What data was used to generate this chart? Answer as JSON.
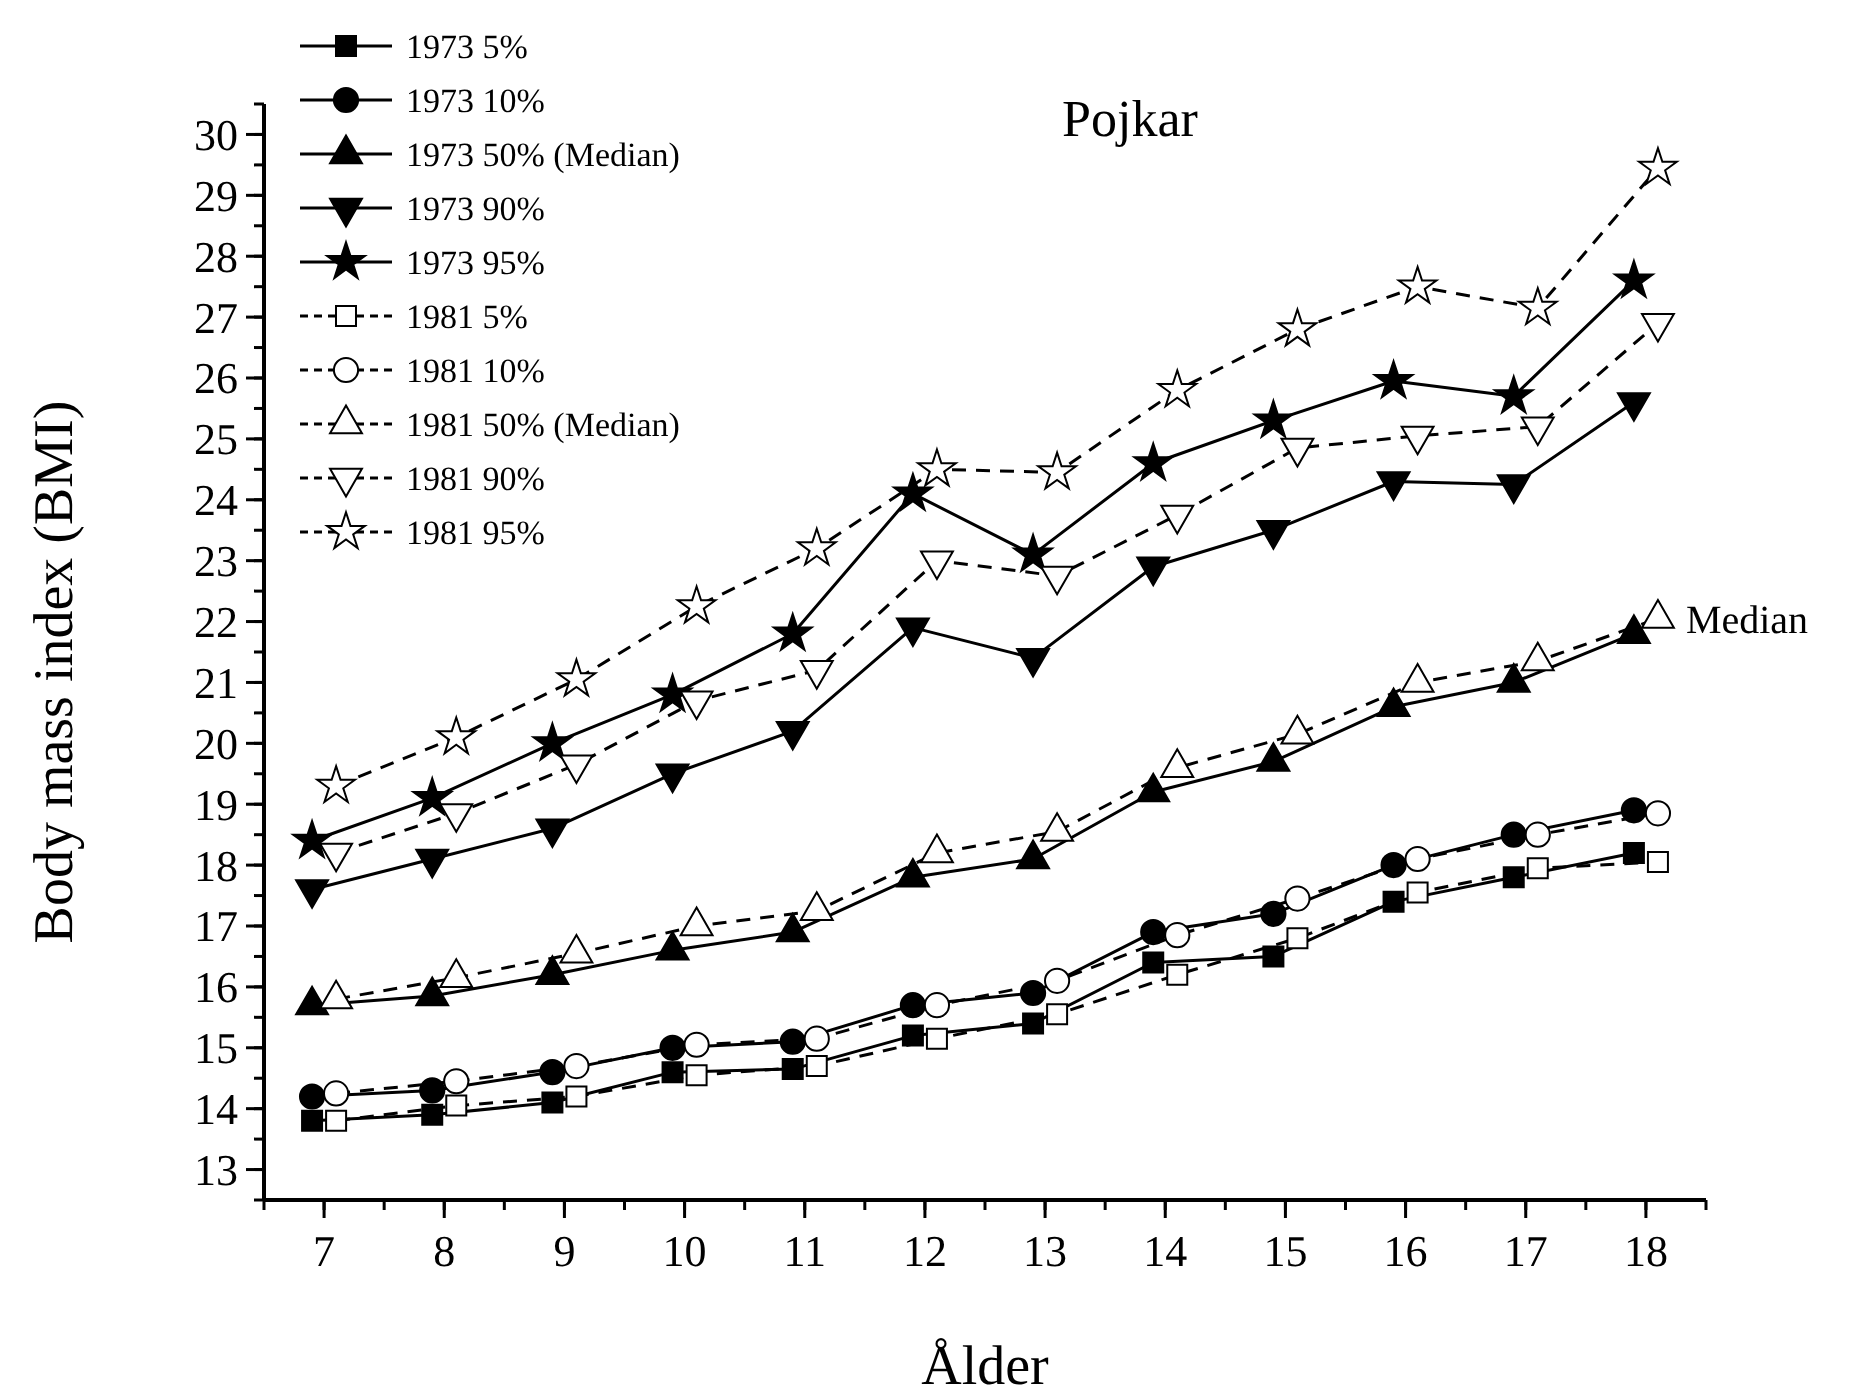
{
  "chart_data": {
    "type": "line",
    "title": "Pojkar",
    "xlabel": "Ålder",
    "ylabel": "Body mass index (BMI)",
    "xlim": [
      6.5,
      18.5
    ],
    "xticks": [
      7,
      8,
      9,
      10,
      11,
      12,
      13,
      14,
      15,
      16,
      17,
      18
    ],
    "ylim": [
      12.5,
      30.5
    ],
    "yticks": [
      13,
      14,
      15,
      16,
      17,
      18,
      19,
      20,
      21,
      22,
      23,
      24,
      25,
      26,
      27,
      28,
      29,
      30
    ],
    "legend": "top left",
    "grid": false,
    "annotations": [
      {
        "text": "Median",
        "x": 18.1,
        "y": 22.05
      }
    ],
    "series": [
      {
        "name": "1973 5%",
        "color": "#000000",
        "marker": "square",
        "line_style": "solid",
        "x": [
          6.9,
          7.9,
          8.9,
          9.9,
          10.9,
          11.9,
          12.9,
          13.9,
          14.9,
          15.9,
          16.9,
          17.9
        ],
        "values": [
          13.8,
          13.9,
          14.1,
          14.6,
          14.65,
          15.2,
          15.4,
          16.4,
          16.5,
          17.4,
          17.8,
          18.2
        ]
      },
      {
        "name": "1973 10%",
        "color": "#000000",
        "marker": "circle",
        "line_style": "solid",
        "x": [
          6.9,
          7.9,
          8.9,
          9.9,
          10.9,
          11.9,
          12.9,
          13.9,
          14.9,
          15.9,
          16.9,
          17.9
        ],
        "values": [
          14.2,
          14.3,
          14.6,
          15.0,
          15.1,
          15.7,
          15.9,
          16.9,
          17.2,
          18.0,
          18.5,
          18.9
        ]
      },
      {
        "name": "1973 50% (Median)",
        "color": "#000000",
        "marker": "triangle",
        "line_style": "solid",
        "x": [
          6.9,
          7.9,
          8.9,
          9.9,
          10.9,
          11.9,
          12.9,
          13.9,
          14.9,
          15.9,
          16.9,
          17.9
        ],
        "values": [
          15.7,
          15.85,
          16.2,
          16.6,
          16.9,
          17.8,
          18.1,
          19.2,
          19.7,
          20.6,
          21.0,
          21.8
        ]
      },
      {
        "name": "1973 90%",
        "color": "#000000",
        "marker": "triangle-down",
        "line_style": "solid",
        "x": [
          6.9,
          7.9,
          8.9,
          9.9,
          10.9,
          11.9,
          12.9,
          13.9,
          14.9,
          15.9,
          16.9,
          17.9
        ],
        "values": [
          17.6,
          18.1,
          18.6,
          19.5,
          20.2,
          21.9,
          21.4,
          22.9,
          23.5,
          24.3,
          24.25,
          25.6
        ]
      },
      {
        "name": "1973 95%",
        "color": "#000000",
        "marker": "star",
        "line_style": "solid",
        "x": [
          6.9,
          7.9,
          8.9,
          9.9,
          10.9,
          11.9,
          12.9,
          13.9,
          14.9,
          15.9,
          16.9,
          17.9
        ],
        "values": [
          18.4,
          19.1,
          20.0,
          20.8,
          21.8,
          24.1,
          23.1,
          24.6,
          25.3,
          25.95,
          25.7,
          27.6
        ]
      },
      {
        "name": "1981 5%",
        "color": "#000000",
        "marker": "square-open",
        "line_style": "dashed",
        "x": [
          7.1,
          8.1,
          9.1,
          10.1,
          11.1,
          12.1,
          13.1,
          14.1,
          15.1,
          16.1,
          17.1,
          18.1
        ],
        "values": [
          13.8,
          14.05,
          14.2,
          14.55,
          14.7,
          15.15,
          15.55,
          16.2,
          16.8,
          17.55,
          17.95,
          18.05
        ]
      },
      {
        "name": "1981 10%",
        "color": "#000000",
        "marker": "circle-open",
        "line_style": "dashed",
        "x": [
          7.1,
          8.1,
          9.1,
          10.1,
          11.1,
          12.1,
          13.1,
          14.1,
          15.1,
          16.1,
          17.1,
          18.1
        ],
        "values": [
          14.25,
          14.45,
          14.7,
          15.05,
          15.15,
          15.7,
          16.1,
          16.85,
          17.45,
          18.1,
          18.5,
          18.85
        ]
      },
      {
        "name": "1981 50% (Median)",
        "color": "#000000",
        "marker": "triangle-open",
        "line_style": "dashed",
        "x": [
          7.1,
          8.1,
          9.1,
          10.1,
          11.1,
          12.1,
          13.1,
          14.1,
          15.1,
          16.1,
          17.1,
          18.1
        ],
        "values": [
          15.8,
          16.15,
          16.55,
          17.0,
          17.25,
          18.2,
          18.55,
          19.6,
          20.15,
          21.0,
          21.35,
          22.05
        ]
      },
      {
        "name": "1981 90%",
        "color": "#000000",
        "marker": "triangle-down-open",
        "line_style": "dashed",
        "x": [
          7.1,
          8.1,
          9.1,
          10.1,
          11.1,
          12.1,
          13.1,
          14.1,
          15.1,
          16.1,
          17.1,
          18.1
        ],
        "values": [
          18.2,
          18.85,
          19.65,
          20.7,
          21.2,
          23.0,
          22.75,
          23.75,
          24.85,
          25.05,
          25.2,
          26.9
        ]
      },
      {
        "name": "1981 95%",
        "color": "#000000",
        "marker": "star-open",
        "line_style": "dashed",
        "x": [
          7.1,
          8.1,
          9.1,
          10.1,
          11.1,
          12.1,
          13.1,
          14.1,
          15.1,
          16.1,
          17.1,
          18.1
        ],
        "values": [
          19.3,
          20.1,
          21.05,
          22.25,
          23.2,
          24.5,
          24.45,
          25.8,
          26.8,
          27.5,
          27.15,
          29.45
        ]
      }
    ]
  }
}
